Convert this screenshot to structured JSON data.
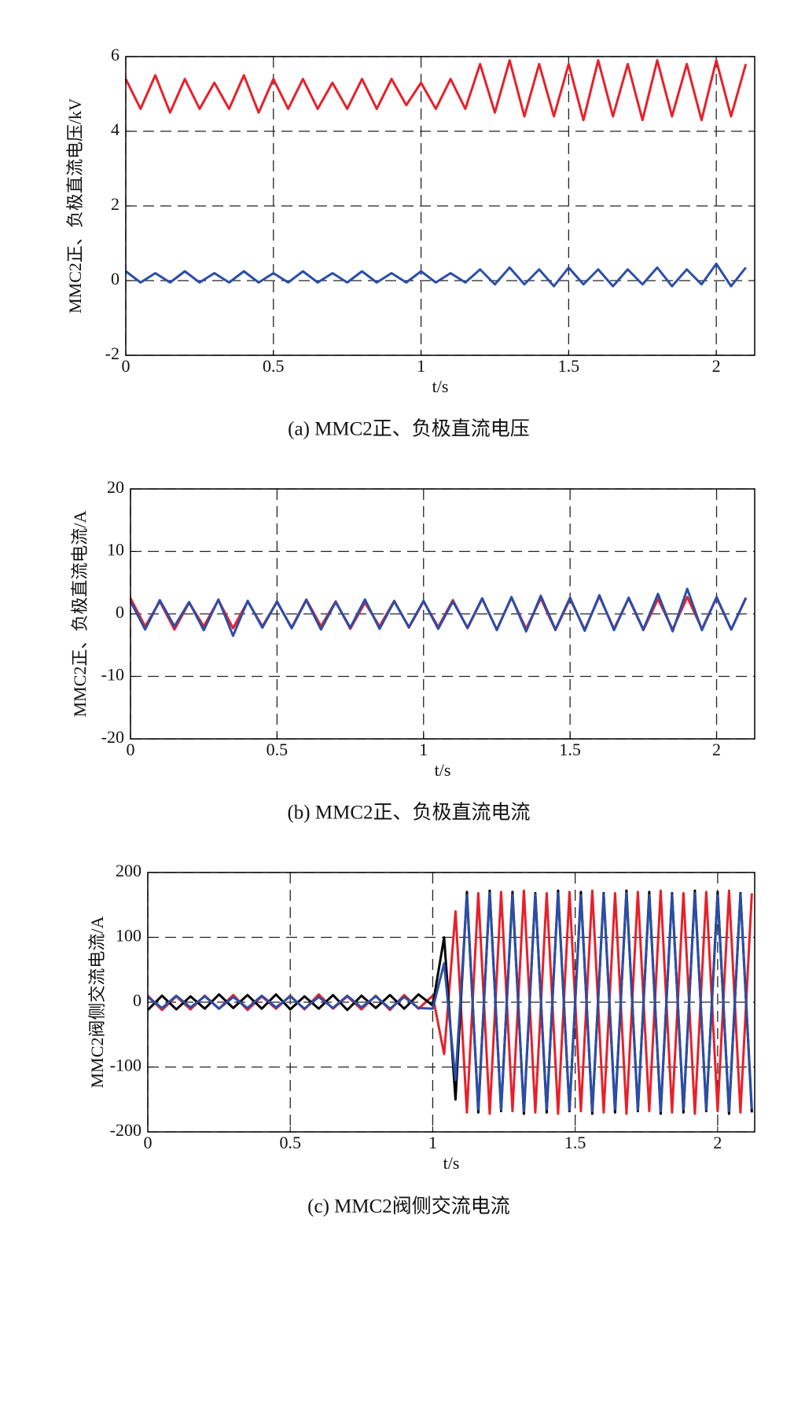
{
  "chart_data": [
    {
      "type": "line",
      "title": "(a) MMC2正、负极直流电压",
      "xlabel": "t/s",
      "ylabel": "MMC2正、负极直流电压/kV",
      "xlim": [
        0,
        2.13
      ],
      "ylim": [
        -2,
        6
      ],
      "xticks": [
        0,
        0.5,
        1,
        1.5,
        2
      ],
      "yticks": [
        -2,
        0,
        2,
        4,
        6
      ],
      "grid": true,
      "x": [
        0,
        0.05,
        0.1,
        0.15,
        0.2,
        0.25,
        0.3,
        0.35,
        0.4,
        0.45,
        0.5,
        0.55,
        0.6,
        0.65,
        0.7,
        0.75,
        0.8,
        0.85,
        0.9,
        0.95,
        1,
        1.05,
        1.1,
        1.15,
        1.2,
        1.25,
        1.3,
        1.35,
        1.4,
        1.45,
        1.5,
        1.55,
        1.6,
        1.65,
        1.7,
        1.75,
        1.8,
        1.85,
        1.9,
        1.95,
        2,
        2.05,
        2.1
      ],
      "series": [
        {
          "color": "#e8202a",
          "values": [
            5.4,
            4.6,
            5.5,
            4.5,
            5.4,
            4.6,
            5.3,
            4.6,
            5.5,
            4.5,
            5.4,
            4.6,
            5.4,
            4.6,
            5.3,
            4.6,
            5.4,
            4.6,
            5.4,
            4.7,
            5.3,
            4.6,
            5.4,
            4.6,
            5.8,
            4.5,
            5.9,
            4.4,
            5.8,
            4.4,
            5.8,
            4.3,
            5.9,
            4.4,
            5.8,
            4.3,
            5.9,
            4.4,
            5.8,
            4.3,
            5.9,
            4.4,
            5.8
          ]
        },
        {
          "color": "#2b4ea8",
          "values": [
            0.25,
            -0.05,
            0.2,
            -0.05,
            0.25,
            -0.05,
            0.2,
            -0.05,
            0.25,
            -0.05,
            0.2,
            -0.05,
            0.25,
            -0.05,
            0.2,
            -0.05,
            0.25,
            -0.05,
            0.2,
            -0.05,
            0.25,
            -0.05,
            0.2,
            -0.05,
            0.3,
            -0.1,
            0.35,
            -0.1,
            0.3,
            -0.15,
            0.35,
            -0.1,
            0.3,
            -0.15,
            0.3,
            -0.1,
            0.35,
            -0.15,
            0.3,
            -0.1,
            0.45,
            -0.15,
            0.35
          ]
        }
      ]
    },
    {
      "type": "line",
      "title": "(b) MMC2正、负极直流电流",
      "xlabel": "t/s",
      "ylabel": "MMC2正、负极直流电流/A",
      "xlim": [
        0,
        2.13
      ],
      "ylim": [
        -20,
        20
      ],
      "xticks": [
        0,
        0.5,
        1,
        1.5,
        2
      ],
      "yticks": [
        -20,
        -10,
        0,
        10,
        20
      ],
      "grid": true,
      "x": [
        0,
        0.05,
        0.1,
        0.15,
        0.2,
        0.25,
        0.3,
        0.35,
        0.4,
        0.45,
        0.5,
        0.55,
        0.6,
        0.65,
        0.7,
        0.75,
        0.8,
        0.85,
        0.9,
        0.95,
        1,
        1.05,
        1.1,
        1.15,
        1.2,
        1.25,
        1.3,
        1.35,
        1.4,
        1.45,
        1.5,
        1.55,
        1.6,
        1.65,
        1.7,
        1.75,
        1.8,
        1.85,
        1.9,
        1.95,
        2,
        2.05,
        2.1
      ],
      "series": [
        {
          "color": "#e8202a",
          "values": [
            2.5,
            -2,
            2,
            -2.5,
            1.8,
            -2,
            2.2,
            -2.3,
            2,
            -2,
            1.9,
            -2.2,
            2.3,
            -2,
            2,
            -2.4,
            1.8,
            -2,
            2.1,
            -2.2,
            2,
            -2.1,
            2.2,
            -2.3,
            2.4,
            -2.5,
            2.6,
            -2.4,
            2.5,
            -2.6,
            2.4,
            -2.5,
            2.8,
            -2.4,
            2.5,
            -2.6,
            2.4,
            -2.5,
            2.7,
            -2.4,
            2.6,
            -2.5,
            2.5
          ]
        },
        {
          "color": "#2b4ea8",
          "values": [
            2,
            -2.5,
            2.2,
            -2,
            1.9,
            -2.6,
            2.3,
            -3.5,
            2.1,
            -2.2,
            2,
            -2.3,
            2.2,
            -2.5,
            1.9,
            -2.2,
            2.3,
            -2.4,
            2,
            -2.1,
            2.1,
            -2.4,
            2,
            -2.2,
            2.5,
            -2.6,
            2.7,
            -2.8,
            2.9,
            -2.5,
            2.6,
            -2.7,
            3,
            -2.6,
            2.6,
            -2.5,
            3.2,
            -2.8,
            4,
            -2.6,
            2.7,
            -2.5,
            2.6
          ]
        }
      ]
    },
    {
      "type": "line",
      "title": "(c) MMC2阀侧交流电流",
      "xlabel": "t/s",
      "ylabel": "MMC2阀侧交流电流/A",
      "xlim": [
        0,
        2.13
      ],
      "ylim": [
        -200,
        200
      ],
      "xticks": [
        0,
        0.5,
        1,
        1.5,
        2
      ],
      "yticks": [
        -200,
        -100,
        0,
        100,
        200
      ],
      "grid": true,
      "x": [
        0,
        0.05,
        0.1,
        0.15,
        0.2,
        0.25,
        0.3,
        0.35,
        0.4,
        0.45,
        0.5,
        0.55,
        0.6,
        0.65,
        0.7,
        0.75,
        0.8,
        0.85,
        0.9,
        0.95,
        1,
        1.04,
        1.08,
        1.12,
        1.16,
        1.2,
        1.24,
        1.28,
        1.32,
        1.36,
        1.4,
        1.44,
        1.48,
        1.52,
        1.56,
        1.6,
        1.64,
        1.68,
        1.72,
        1.76,
        1.8,
        1.84,
        1.88,
        1.92,
        1.96,
        2,
        2.04,
        2.08,
        2.12
      ],
      "series": [
        {
          "color": "#e8202a",
          "values": [
            10,
            -12,
            9,
            -11,
            10,
            -10,
            11,
            -12,
            9,
            -10,
            10,
            -11,
            12,
            -10,
            9,
            -11,
            10,
            -12,
            11,
            -10,
            10,
            -80,
            140,
            -170,
            168,
            -172,
            170,
            -168,
            172,
            -170,
            168,
            -172,
            170,
            -168,
            172,
            -170,
            168,
            -172,
            170,
            -168,
            172,
            -170,
            168,
            -172,
            170,
            -168,
            172,
            -170,
            168
          ]
        },
        {
          "color": "#000000",
          "values": [
            -12,
            10,
            -11,
            9,
            -10,
            12,
            -9,
            11,
            -10,
            12,
            -11,
            9,
            -10,
            11,
            -12,
            10,
            -9,
            11,
            -10,
            12,
            -5,
            100,
            -150,
            170,
            -170,
            172,
            -168,
            170,
            -172,
            168,
            -170,
            172,
            -168,
            170,
            -172,
            168,
            -170,
            172,
            -168,
            170,
            -172,
            168,
            -170,
            172,
            -168,
            170,
            -172,
            168,
            -170
          ]
        },
        {
          "color": "#2b4ea8",
          "values": [
            8,
            -9,
            10,
            -8,
            9,
            -10,
            8,
            -9,
            10,
            -8,
            9,
            -10,
            8,
            -9,
            10,
            -8,
            9,
            -10,
            8,
            -9,
            -10,
            60,
            -120,
            165,
            -165,
            168,
            -166,
            165,
            -168,
            166,
            -165,
            168,
            -166,
            165,
            -168,
            166,
            -165,
            168,
            -166,
            165,
            -168,
            166,
            -165,
            168,
            -166,
            165,
            -168,
            166,
            -165
          ]
        }
      ]
    }
  ]
}
